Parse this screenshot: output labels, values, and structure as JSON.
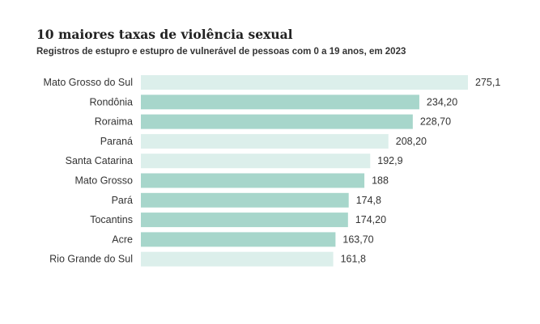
{
  "chart_data": {
    "type": "bar",
    "orientation": "horizontal",
    "title": "10 maiores taxas de violência sexual",
    "subtitle": "Registros de estupro e estupro de vulnerável de pessoas com 0 a 19 anos, em 2023",
    "categories": [
      "Mato Grosso do Sul",
      "Rondônia",
      "Roraima",
      "Paraná",
      "Santa Catarina",
      "Mato Grosso",
      "Pará",
      "Tocantins",
      "Acre",
      "Rio Grande do Sul"
    ],
    "values": [
      275.1,
      234.2,
      228.7,
      208.2,
      192.9,
      188,
      174.8,
      174.2,
      163.7,
      161.8
    ],
    "value_labels": [
      "275,1",
      "234,20",
      "228,70",
      "208,20",
      "192,9",
      "188",
      "174,8",
      "174,20",
      "163,70",
      "161,8"
    ],
    "bar_colors": [
      "#dcefeb",
      "#a7d6cb",
      "#a7d6cb",
      "#dcefeb",
      "#dcefeb",
      "#a7d6cb",
      "#a7d6cb",
      "#a7d6cb",
      "#a7d6cb",
      "#dcefeb"
    ],
    "xlim": [
      0,
      275.1
    ],
    "grid": false,
    "legend": "none"
  }
}
